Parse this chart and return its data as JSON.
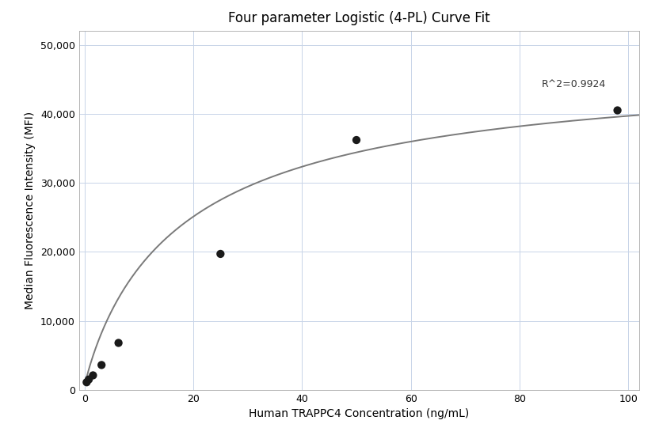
{
  "title": "Four parameter Logistic (4-PL) Curve Fit",
  "xlabel": "Human TRAPPC4 Concentration (ng/mL)",
  "ylabel": "Median Fluorescence Intensity (MFI)",
  "scatter_x": [
    0.39,
    0.78,
    1.56,
    3.13,
    6.25,
    25.0,
    50.0,
    98.0
  ],
  "scatter_y": [
    1100,
    1500,
    2100,
    3600,
    6800,
    19700,
    36200,
    40500
  ],
  "r_squared": "R^2=0.9924",
  "r_squared_x": 90,
  "r_squared_y": 43500,
  "xlim": [
    -1,
    102
  ],
  "ylim": [
    0,
    52000
  ],
  "yticks": [
    0,
    10000,
    20000,
    30000,
    40000,
    50000
  ],
  "xticks": [
    0,
    20,
    40,
    60,
    80,
    100
  ],
  "4pl_A": 500,
  "4pl_D": 48000,
  "4pl_C": 18.5,
  "4pl_B": 0.92,
  "scatter_color": "#1a1a1a",
  "scatter_size": 55,
  "curve_color": "#7a7a7a",
  "curve_lw": 1.4,
  "grid_color": "#c8d4e8",
  "background_color": "#ffffff",
  "title_fontsize": 12,
  "label_fontsize": 10,
  "tick_fontsize": 9,
  "annotation_fontsize": 9
}
